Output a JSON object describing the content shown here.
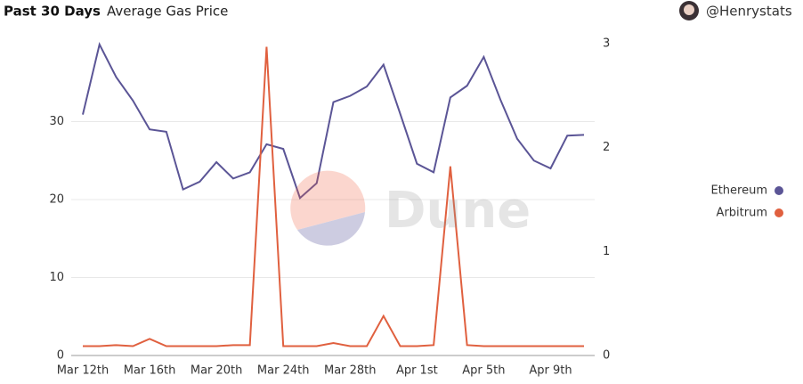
{
  "header": {
    "title": "Past 30 Days",
    "subtitle": "Average Gas Price",
    "user": "@Henrystats"
  },
  "chart_data": {
    "type": "line",
    "watermark": "Dune",
    "categories": [
      "Mar 12th",
      null,
      null,
      null,
      "Mar 16th",
      null,
      null,
      null,
      "Mar 20th",
      null,
      null,
      null,
      "Mar 24th",
      null,
      null,
      null,
      "Mar 28th",
      null,
      null,
      null,
      "Apr 1st",
      null,
      null,
      null,
      "Apr 5th",
      null,
      null,
      null,
      "Apr 9th",
      null,
      null
    ],
    "series": [
      {
        "name": "Ethereum",
        "color": "#5b5596",
        "values": [
          30.9,
          39.9,
          35.7,
          32.7,
          29.0,
          28.7,
          21.3,
          22.3,
          24.8,
          22.7,
          23.5,
          27.1,
          26.5,
          20.2,
          22.1,
          32.5,
          33.3,
          34.5,
          37.3,
          31.0,
          24.6,
          23.5,
          33.1,
          34.6,
          38.3,
          32.8,
          27.8,
          25.0,
          24.0,
          28.2,
          28.3
        ]
      },
      {
        "name": "Arbitrum",
        "color": "#e0603f",
        "axis": "y2",
        "values": [
          0.09,
          0.09,
          0.1,
          0.09,
          0.16,
          0.09,
          0.09,
          0.09,
          0.09,
          0.1,
          0.1,
          2.97,
          0.09,
          0.09,
          0.09,
          0.12,
          0.09,
          0.09,
          0.38,
          0.09,
          0.09,
          0.1,
          1.82,
          0.1,
          0.09,
          0.09,
          0.09,
          0.09,
          0.09,
          0.09,
          0.09
        ]
      }
    ],
    "ylim": [
      0,
      40
    ],
    "yticks": [
      0,
      10,
      20,
      30
    ],
    "y2lim": [
      0,
      3
    ],
    "y2ticks": [
      0,
      1,
      2,
      3
    ],
    "grid": true,
    "legend": "right"
  }
}
